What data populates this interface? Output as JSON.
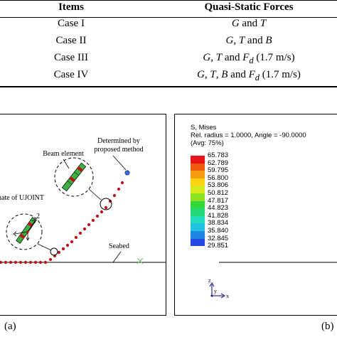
{
  "table": {
    "headers": [
      "Items",
      "Quasi-Static Forces"
    ],
    "rows": [
      {
        "item": "Case I",
        "forces": [
          "G",
          " and ",
          "T",
          "",
          "",
          "",
          ""
        ]
      },
      {
        "item": "Case II",
        "forces": [
          "G",
          ", ",
          "T",
          " and ",
          "B",
          "",
          ""
        ]
      },
      {
        "item": "Case III",
        "forces": [
          "G",
          ", ",
          "T",
          " and ",
          "F",
          "d",
          " (1.7 m/s)"
        ]
      },
      {
        "item": "Case IV",
        "forces": [
          "G",
          ", ",
          "T",
          ", ",
          "B",
          " and ",
          "F"
        ]
      }
    ],
    "case4_tail": {
      "sub": "d",
      "rest": " (1.7 m/s)"
    }
  },
  "panel_a": {
    "label": "(a)",
    "annotations": {
      "determined": [
        "Determined by",
        "proposed method"
      ],
      "beam": "Beam element",
      "ujoint": "nate of UJOINT",
      "ujoint_number": "2",
      "seabed": "Seabed"
    },
    "colors": {
      "node": "#c0101a",
      "tip": "#3a6fd8",
      "beam_green": "#3cb043",
      "seabed_mark": "#7ec87e"
    }
  },
  "panel_b": {
    "label": "(b)",
    "legend_title": [
      "S, Mises",
      "Rel. radius = 1.0000, Angle = -90.0000",
      "(Avg: 75%)"
    ],
    "scale_values": [
      "65.783",
      "62.789",
      "59.795",
      "56.800",
      "53.806",
      "50.812",
      "47.817",
      "44.823",
      "41.828",
      "38.834",
      "35.840",
      "32.845",
      "29.851"
    ],
    "scale_colors": [
      "#e8141a",
      "#f05a10",
      "#f79b0e",
      "#fbd313",
      "#d4ea1b",
      "#8fe21f",
      "#34d838",
      "#25d97a",
      "#22dcbc",
      "#1fc2e0",
      "#1f86e6",
      "#2449e4"
    ],
    "axis": {
      "z": "z",
      "y": "y",
      "x": "x"
    }
  }
}
